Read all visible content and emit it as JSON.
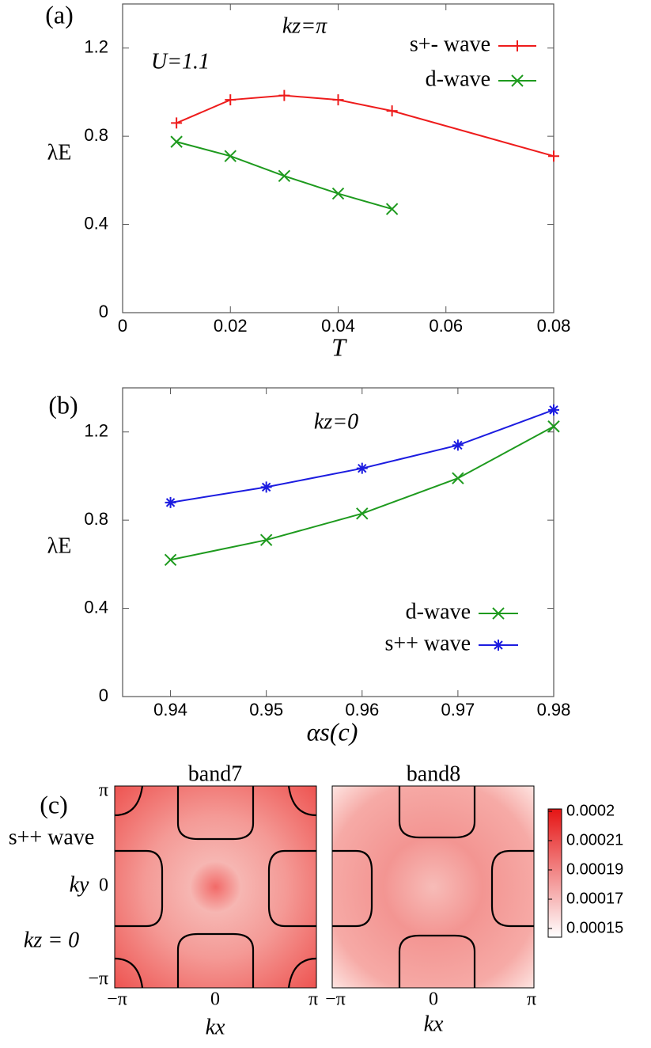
{
  "chart_data": [
    {
      "type": "line",
      "label": "(a)",
      "annotations": [
        "kz=π",
        "U=1.1"
      ],
      "xlabel": "T",
      "ylabel": "λE",
      "xlim": [
        0,
        0.08
      ],
      "xticks": [
        0,
        0.02,
        0.04,
        0.06,
        0.08
      ],
      "ylim": [
        0,
        1.4
      ],
      "yticks": [
        0,
        0.4,
        0.8,
        1.2
      ],
      "legend": "upper right",
      "series": [
        {
          "name": "s+- wave",
          "color": "#ee1c1c",
          "marker": "plus",
          "x": [
            0.01,
            0.02,
            0.03,
            0.04,
            0.05,
            0.08
          ],
          "values": [
            0.86,
            0.965,
            0.985,
            0.965,
            0.915,
            0.71
          ]
        },
        {
          "name": "d-wave",
          "color": "#1e9a1e",
          "marker": "cross",
          "x": [
            0.01,
            0.02,
            0.03,
            0.04,
            0.05
          ],
          "values": [
            0.775,
            0.71,
            0.62,
            0.54,
            0.47
          ]
        }
      ]
    },
    {
      "type": "line",
      "label": "(b)",
      "annotations": [
        "kz=0"
      ],
      "xlabel": "αs(c)",
      "ylabel": "λE",
      "xlim": [
        0.935,
        0.98
      ],
      "xticks": [
        0.94,
        0.95,
        0.96,
        0.97,
        0.98
      ],
      "ylim": [
        0,
        1.4
      ],
      "yticks": [
        0,
        0.4,
        0.8,
        1.2
      ],
      "legend": "lower right",
      "series": [
        {
          "name": "d-wave",
          "color": "#1e9a1e",
          "marker": "cross",
          "x": [
            0.94,
            0.95,
            0.96,
            0.97,
            0.98
          ],
          "values": [
            0.62,
            0.71,
            0.83,
            0.99,
            1.225
          ]
        },
        {
          "name": "s++ wave",
          "color": "#1c1ce0",
          "marker": "star",
          "x": [
            0.94,
            0.95,
            0.96,
            0.97,
            0.98
          ],
          "values": [
            0.88,
            0.95,
            1.035,
            1.14,
            1.3
          ]
        }
      ]
    }
  ],
  "panel_c": {
    "label": "(c)",
    "titles": [
      "band7",
      "band8"
    ],
    "row_labels": [
      "s++ wave",
      "ky",
      "kz = 0"
    ],
    "y_ticks": [
      "π",
      "0",
      "−π"
    ],
    "x_ticks": [
      "−π",
      "0",
      "π"
    ],
    "x_label": "kx",
    "colorbar_labels": [
      "0.0002",
      "0.00021",
      "0.00019",
      "0.00017",
      "0.00015"
    ]
  }
}
